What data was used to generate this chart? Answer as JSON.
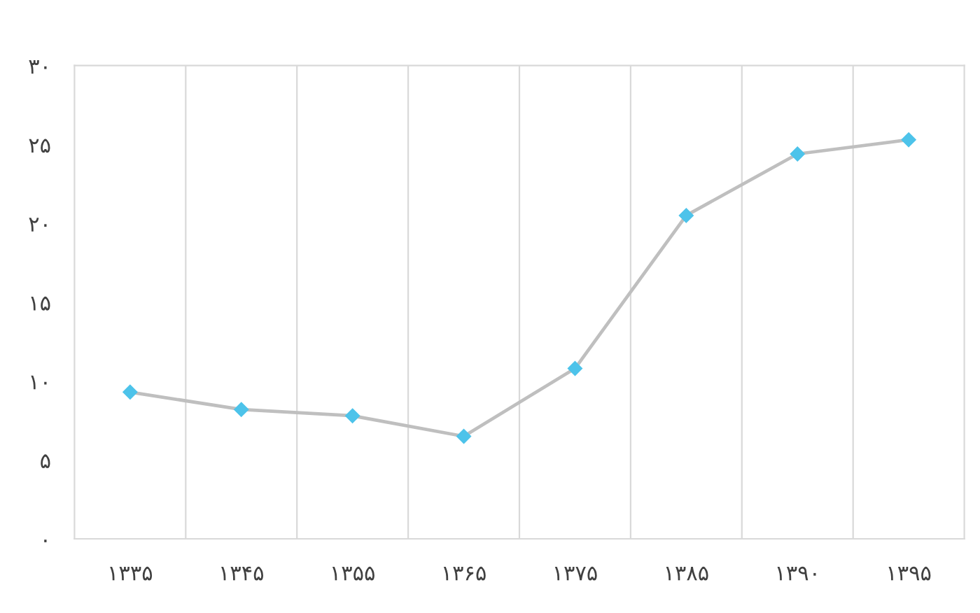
{
  "chart_data": {
    "type": "line",
    "categories": [
      "۱۳۳۵",
      "۱۳۴۵",
      "۱۳۵۵",
      "۱۳۶۵",
      "۱۳۷۵",
      "۱۳۸۵",
      "۱۳۹۰",
      "۱۳۹۵"
    ],
    "series": [
      {
        "color": "#bfbfbf",
        "colors": [
          "#4dc3ea",
          "#4dc3ea",
          "#4dc3ea",
          "#4dc3ea",
          "#4dc3ea",
          "#4dc3ea",
          "#4dc3ea",
          "#4dc3ea"
        ],
        "values": [
          9.3,
          8.2,
          7.8,
          6.5,
          10.8,
          20.5,
          24.4,
          25.3
        ]
      }
    ],
    "ylim": [
      0,
      30
    ],
    "yticks": [
      {
        "value": 0,
        "label": "۰"
      },
      {
        "value": 5,
        "label": "۵"
      },
      {
        "value": 10,
        "label": "۱۰"
      },
      {
        "value": 15,
        "label": "۱۵"
      },
      {
        "value": 20,
        "label": "۲۰"
      },
      {
        "value": 25,
        "label": "۲۵"
      },
      {
        "value": 30,
        "label": "۳۰"
      }
    ],
    "grid": "x",
    "marker": "diamond",
    "line_style": "solid"
  }
}
